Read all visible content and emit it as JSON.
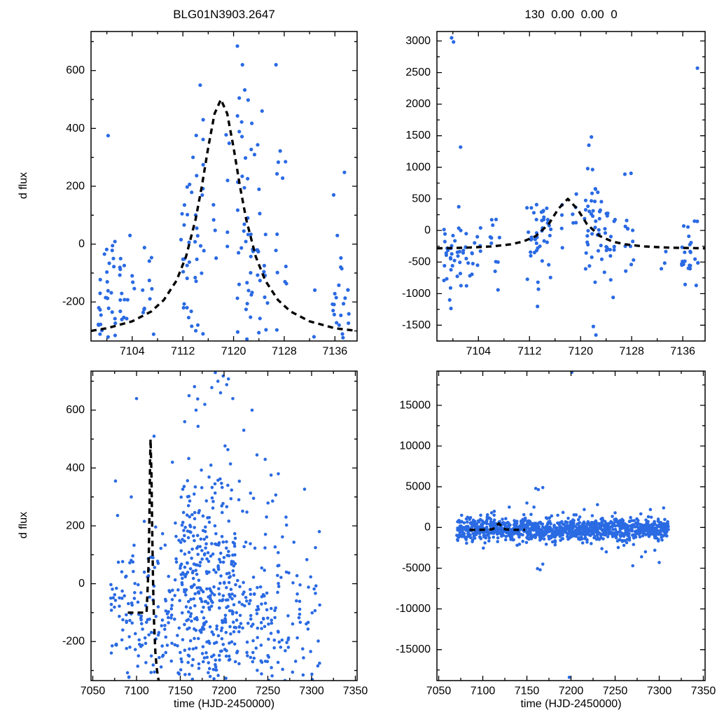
{
  "page": {
    "background": "#ffffff",
    "frame_color": "#000000"
  },
  "chart_data": {
    "type": "scatter",
    "point_color": "#2a6ae3",
    "model_color": "#000000",
    "x_axis_title": "time (HJD-2450000)",
    "y_axis_title": "d flux",
    "legend": "none",
    "grid": false,
    "panels": [
      {
        "id": "top-left",
        "title": "BLG01N3903.2647",
        "xlim": [
          7097.5,
          7139.5
        ],
        "ylim": [
          -335,
          735
        ],
        "xticks": [
          7104,
          7112,
          7120,
          7128,
          7136
        ],
        "yticks": [
          -200,
          0,
          200,
          400,
          600
        ],
        "model_curve": [
          [
            7097.5,
            -300
          ],
          [
            7100,
            -291
          ],
          [
            7104,
            -267
          ],
          [
            7107,
            -233
          ],
          [
            7109,
            -193
          ],
          [
            7111,
            -126
          ],
          [
            7112.5,
            -43
          ],
          [
            7114,
            85
          ],
          [
            7115,
            201
          ],
          [
            7116,
            334
          ],
          [
            7117,
            451
          ],
          [
            7118,
            500
          ],
          [
            7119,
            451
          ],
          [
            7120,
            334
          ],
          [
            7121,
            201
          ],
          [
            7122,
            85
          ],
          [
            7123.5,
            -43
          ],
          [
            7125,
            -126
          ],
          [
            7127,
            -193
          ],
          [
            7129,
            -233
          ],
          [
            7132,
            -267
          ],
          [
            7136,
            -291
          ],
          [
            7139.5,
            -300
          ]
        ],
        "clusters": [
          [
            7099,
            10,
            -190,
            100
          ],
          [
            7100,
            12,
            -170,
            110
          ],
          [
            7101,
            10,
            -160,
            120
          ],
          [
            7102,
            8,
            -180,
            100
          ],
          [
            7103,
            6,
            -150,
            130
          ],
          [
            7104,
            5,
            -170,
            90
          ],
          [
            7106,
            5,
            -140,
            120
          ],
          [
            7107,
            6,
            -150,
            110
          ],
          [
            7112,
            9,
            -120,
            140
          ],
          [
            7113,
            12,
            -60,
            170
          ],
          [
            7114,
            11,
            -20,
            170
          ],
          [
            7115,
            9,
            40,
            190
          ],
          [
            7117,
            4,
            80,
            150
          ],
          [
            7119,
            5,
            150,
            180
          ],
          [
            7121,
            13,
            120,
            230
          ],
          [
            7122,
            14,
            30,
            230
          ],
          [
            7123,
            12,
            -30,
            210
          ],
          [
            7124,
            10,
            -90,
            190
          ],
          [
            7125,
            8,
            -140,
            160
          ],
          [
            7127,
            7,
            -60,
            200
          ],
          [
            7128,
            5,
            -150,
            150
          ],
          [
            7133,
            3,
            -240,
            60
          ],
          [
            7136,
            9,
            -160,
            120
          ],
          [
            7137,
            10,
            -180,
            110
          ],
          [
            7138,
            6,
            -200,
            100
          ]
        ],
        "outliers": [
          [
            7100.2,
            375
          ],
          [
            7121.4,
            620
          ],
          [
            7120.9,
            505
          ],
          [
            7126.7,
            620
          ],
          [
            7115.2,
            430
          ],
          [
            7122.3,
            498
          ],
          [
            7137.5,
            248
          ],
          [
            7135.8,
            170
          ],
          [
            7113.6,
            300
          ],
          [
            7124.5,
            460
          ]
        ],
        "seed": 11
      },
      {
        "id": "top-right",
        "title": "130  0.00  0.00  0",
        "xlim": [
          7097.5,
          7139.5
        ],
        "ylim": [
          -1750,
          3150
        ],
        "xticks": [
          7104,
          7112,
          7120,
          7128,
          7136
        ],
        "yticks": [
          -1500,
          -1000,
          -500,
          0,
          500,
          1000,
          1500,
          2000,
          2500,
          3000
        ],
        "model_curve": [
          [
            7097.5,
            -283
          ],
          [
            7102,
            -273
          ],
          [
            7106,
            -253
          ],
          [
            7109,
            -220
          ],
          [
            7111,
            -176
          ],
          [
            7113,
            -88
          ],
          [
            7115,
            100
          ],
          [
            7116.5,
            340
          ],
          [
            7118,
            500
          ],
          [
            7119.5,
            340
          ],
          [
            7121,
            100
          ],
          [
            7123,
            -88
          ],
          [
            7125,
            -176
          ],
          [
            7127,
            -220
          ],
          [
            7130,
            -253
          ],
          [
            7134,
            -273
          ],
          [
            7139.5,
            -283
          ]
        ],
        "clusters": [
          [
            7099,
            10,
            -350,
            260
          ],
          [
            7100,
            12,
            -300,
            300
          ],
          [
            7101,
            10,
            -280,
            320
          ],
          [
            7102,
            8,
            -320,
            260
          ],
          [
            7103,
            6,
            -300,
            280
          ],
          [
            7104,
            5,
            -320,
            240
          ],
          [
            7106,
            5,
            -300,
            260
          ],
          [
            7107,
            6,
            -310,
            250
          ],
          [
            7112,
            9,
            -150,
            300
          ],
          [
            7113,
            12,
            -100,
            330
          ],
          [
            7114,
            11,
            -50,
            330
          ],
          [
            7115,
            9,
            0,
            350
          ],
          [
            7117,
            4,
            60,
            280
          ],
          [
            7119,
            5,
            150,
            320
          ],
          [
            7121,
            13,
            150,
            420
          ],
          [
            7122,
            14,
            0,
            420
          ],
          [
            7123,
            12,
            -80,
            380
          ],
          [
            7124,
            10,
            -150,
            350
          ],
          [
            7125,
            8,
            -220,
            320
          ],
          [
            7127,
            7,
            -120,
            380
          ],
          [
            7128,
            5,
            -250,
            300
          ],
          [
            7133,
            3,
            -400,
            150
          ],
          [
            7136,
            9,
            -280,
            260
          ],
          [
            7137,
            10,
            -300,
            250
          ],
          [
            7138,
            6,
            -320,
            240
          ]
        ],
        "outliers": [
          [
            7099.8,
            3050
          ],
          [
            7100.1,
            2985
          ],
          [
            7101.2,
            1320
          ],
          [
            7138.3,
            2570
          ],
          [
            7099.5,
            -1100
          ],
          [
            7113.4,
            -930
          ],
          [
            7122.0,
            -1520
          ],
          [
            7122.4,
            -1655
          ],
          [
            7125.1,
            -1060
          ],
          [
            7121.7,
            1480
          ],
          [
            7121.3,
            1350
          ],
          [
            7127.9,
            905
          ]
        ],
        "seed": 22
      },
      {
        "id": "bottom-left",
        "title": "",
        "xlim": [
          7048,
          7352
        ],
        "ylim": [
          -335,
          735
        ],
        "xticks": [
          7050,
          7100,
          7150,
          7200,
          7250,
          7300,
          7350
        ],
        "yticks": [
          -200,
          0,
          200,
          400,
          600
        ],
        "model_curve": [
          [
            7090,
            -100
          ],
          [
            7111.5,
            -100
          ],
          [
            7113,
            7
          ],
          [
            7114,
            97
          ],
          [
            7115,
            297
          ],
          [
            7115.5,
            432
          ],
          [
            7116,
            500
          ],
          [
            7117,
            384
          ],
          [
            7118,
            166
          ],
          [
            7119,
            -14
          ],
          [
            7120,
            -133
          ],
          [
            7121.5,
            -236
          ],
          [
            7123,
            -291
          ],
          [
            7125,
            -331
          ],
          [
            7127,
            -355
          ]
        ],
        "runs": [
          {
            "x0": 7072,
            "x1": 7148,
            "step": 3.8,
            "n": 8,
            "mean": -130,
            "sd": 150
          },
          {
            "x0": 7151,
            "x1": 7211,
            "step": 3.0,
            "n": 19,
            "mean": -50,
            "sd": 230
          },
          {
            "x0": 7214,
            "x1": 7262,
            "step": 4.0,
            "n": 11,
            "mean": -110,
            "sd": 200
          },
          {
            "x0": 7266,
            "x1": 7308,
            "step": 4.2,
            "n": 6,
            "mean": -140,
            "sd": 165
          }
        ],
        "outliers": [
          [
            7100,
            640
          ],
          [
            7160,
            650
          ],
          [
            7168,
            600
          ],
          [
            7190,
            730
          ],
          [
            7193,
            700
          ],
          [
            7199,
            718
          ],
          [
            7203,
            688
          ],
          [
            7196,
            660
          ],
          [
            7210,
            640
          ],
          [
            7232,
            600
          ],
          [
            7247,
            430
          ],
          [
            7262,
            380
          ],
          [
            7120,
            510
          ],
          [
            7155,
            560
          ],
          [
            7186,
            678
          ],
          [
            7205,
            708
          ],
          [
            7178,
            620
          ],
          [
            7076,
            355
          ],
          [
            7094,
            300
          ],
          [
            7141,
            420
          ]
        ],
        "seed": 33
      },
      {
        "id": "bottom-right",
        "title": "",
        "xlim": [
          7048,
          7352
        ],
        "ylim": [
          -18800,
          19200
        ],
        "xticks": [
          7050,
          7100,
          7150,
          7200,
          7250,
          7300,
          7350
        ],
        "yticks": [
          -15000,
          -10000,
          -5000,
          0,
          5000,
          10000,
          15000
        ],
        "model_curve": [
          [
            7085,
            -290
          ],
          [
            7100,
            -280
          ],
          [
            7110,
            -240
          ],
          [
            7114,
            -50
          ],
          [
            7116,
            300
          ],
          [
            7118,
            500
          ],
          [
            7120,
            300
          ],
          [
            7122,
            -50
          ],
          [
            7126,
            -240
          ],
          [
            7135,
            -280
          ],
          [
            7148,
            -290
          ]
        ],
        "runs": [
          {
            "x0": 7072,
            "x1": 7310,
            "step": 3.0,
            "n": 14,
            "mean": -300,
            "sd": 700
          }
        ],
        "outliers": [
          [
            7160,
            4800
          ],
          [
            7163,
            4650
          ],
          [
            7165,
            -5200
          ],
          [
            7168,
            -4500
          ],
          [
            7150,
            3000
          ],
          [
            7158,
            2500
          ],
          [
            7185,
            1500
          ],
          [
            7230,
            2800
          ],
          [
            7235,
            -2600
          ],
          [
            7250,
            1800
          ],
          [
            7260,
            -2200
          ],
          [
            7270,
            -4700
          ],
          [
            7280,
            -3600
          ],
          [
            7290,
            2200
          ],
          [
            7295,
            -2800
          ],
          [
            7300,
            -4300
          ],
          [
            7305,
            2400
          ],
          [
            7130,
            2500
          ],
          [
            7135,
            -1500
          ],
          [
            7110,
            1800
          ],
          [
            7076,
            1500
          ],
          [
            7090,
            -1200
          ],
          [
            7201,
            19050
          ],
          [
            7198,
            -18400
          ],
          [
            7168,
            4900
          ],
          [
            7162,
            -5050
          ],
          [
            7240,
            -3000
          ],
          [
            7215,
            2200
          ]
        ],
        "seed": 44
      }
    ]
  }
}
